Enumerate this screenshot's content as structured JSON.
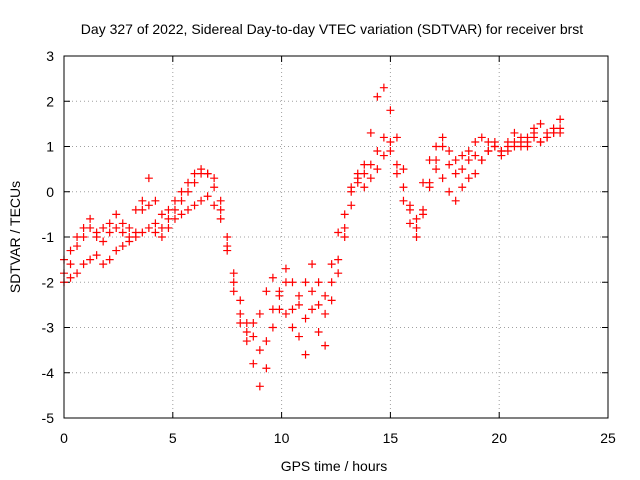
{
  "chart_data": {
    "type": "scatter",
    "title": "Day 327 of 2022, Sidereal Day-to-day VTEC variation (SDTVAR) for receiver brst",
    "xlabel": "GPS time / hours",
    "ylabel": "SDTVAR / TECUs",
    "xlim": [
      0,
      25
    ],
    "ylim": [
      -5,
      3
    ],
    "xticks": [
      0,
      5,
      10,
      15,
      20,
      25
    ],
    "yticks": [
      -5,
      -4,
      -3,
      -2,
      -1,
      0,
      1,
      2,
      3
    ],
    "grid": true,
    "marker": "+",
    "series": [
      {
        "color": "#ff0000",
        "x": [
          0.0,
          0.3,
          0.6,
          0.9,
          1.2,
          1.5,
          1.8,
          2.1,
          2.4,
          2.7,
          3.0,
          3.3,
          3.6,
          3.9,
          4.2,
          4.5,
          4.8,
          5.1,
          5.4,
          5.7,
          6.0,
          6.3,
          6.6,
          6.9,
          7.2,
          7.5,
          7.8,
          8.1,
          8.4,
          8.7,
          9.0,
          9.3,
          9.6,
          9.9,
          10.2,
          10.5,
          10.8,
          11.1,
          11.4,
          11.7,
          12.0,
          12.3,
          12.6,
          12.9,
          13.2,
          13.5,
          13.8,
          14.1,
          14.4,
          14.7,
          15.0,
          15.3,
          15.6,
          15.9,
          16.2,
          16.5,
          16.8,
          17.1,
          17.4,
          17.7,
          18.0,
          18.3,
          18.6,
          18.9,
          19.2,
          19.5,
          19.8,
          20.1,
          20.4,
          20.7,
          21.0,
          21.3,
          21.6,
          21.9,
          22.2,
          22.5,
          22.8
        ],
        "y": [
          -2.0,
          -1.6,
          -1.2,
          -1.0,
          -0.8,
          -1.0,
          -1.1,
          -0.9,
          -0.8,
          -0.9,
          -1.0,
          -0.9,
          -0.4,
          -0.3,
          -0.7,
          -0.8,
          -0.6,
          -0.4,
          -0.2,
          0.0,
          0.2,
          0.4,
          0.4,
          0.3,
          -0.2,
          -1.0,
          -1.8,
          -2.4,
          -2.9,
          -3.2,
          -3.5,
          -3.3,
          -2.6,
          -2.2,
          -2.0,
          -2.6,
          -2.3,
          -2.8,
          -2.2,
          -2.5,
          -2.7,
          -2.4,
          -1.8,
          -1.0,
          -0.3,
          0.2,
          0.4,
          0.6,
          0.9,
          1.2,
          0.9,
          0.4,
          -0.2,
          -0.7,
          -0.6,
          0.2,
          0.7,
          1.0,
          1.2,
          0.9,
          0.7,
          0.8,
          0.9,
          1.1,
          1.2,
          1.1,
          1.0,
          0.9,
          1.0,
          1.1,
          1.0,
          1.2,
          1.3,
          1.1,
          1.2,
          1.3,
          1.3
        ]
      },
      {
        "color": "#ff0000",
        "x": [
          0.0,
          0.3,
          0.6,
          0.9,
          1.2,
          1.5,
          1.8,
          2.1,
          2.4,
          2.7,
          3.0,
          3.3,
          3.6,
          3.9,
          4.2,
          4.5,
          4.8,
          5.1,
          5.4,
          5.7,
          6.0,
          6.3,
          6.6,
          6.9,
          7.2,
          7.5,
          7.8,
          8.1,
          8.4,
          8.7,
          9.0,
          9.3,
          9.6,
          9.9,
          10.2,
          10.5,
          10.8,
          11.1,
          11.4,
          11.7,
          12.0,
          12.3,
          12.6,
          12.9,
          13.2,
          13.5,
          13.8,
          14.1,
          14.4,
          14.7,
          15.0,
          15.3,
          15.6,
          15.9,
          16.2,
          16.5,
          16.8,
          17.1,
          17.4,
          17.7,
          18.0,
          18.3,
          18.6,
          18.9,
          19.2,
          19.5,
          19.8,
          20.1,
          20.4,
          20.7,
          21.0,
          21.3,
          21.6,
          21.9,
          22.2,
          22.5,
          22.8
        ],
        "y": [
          -1.8,
          -1.3,
          -1.0,
          -0.8,
          -0.6,
          -0.9,
          -0.8,
          -0.7,
          -0.5,
          -0.7,
          -0.8,
          -0.4,
          -0.2,
          0.3,
          -0.2,
          -0.5,
          -0.4,
          -0.2,
          0.0,
          0.2,
          0.4,
          0.5,
          0.4,
          0.1,
          -0.4,
          -1.3,
          -2.2,
          -2.9,
          -3.3,
          -3.8,
          -4.3,
          -3.9,
          -3.0,
          -2.6,
          -1.7,
          -2.0,
          -3.2,
          -3.6,
          -2.6,
          -3.1,
          -3.4,
          -2.0,
          -1.5,
          -0.8,
          0.1,
          0.4,
          0.6,
          1.3,
          2.1,
          2.3,
          1.8,
          1.2,
          0.5,
          -0.4,
          -1.0,
          -0.5,
          0.1,
          0.5,
          0.3,
          0.0,
          -0.2,
          0.1,
          0.3,
          0.4,
          0.7,
          0.9,
          1.1,
          0.9,
          1.1,
          1.3,
          1.2,
          1.1,
          1.4,
          1.5,
          1.2,
          1.3,
          1.6
        ]
      },
      {
        "color": "#ff0000",
        "x": [
          0.0,
          0.3,
          0.6,
          0.9,
          1.2,
          1.5,
          1.8,
          2.1,
          2.4,
          2.7,
          3.0,
          3.3,
          3.6,
          3.9,
          4.2,
          4.5,
          4.8,
          5.1,
          5.4,
          5.7,
          6.0,
          6.3,
          6.6,
          6.9,
          7.2,
          7.5,
          7.8,
          8.1,
          8.4,
          8.7,
          9.0,
          9.3,
          9.6,
          9.9,
          10.2,
          10.5,
          10.8,
          11.1,
          11.4,
          11.7,
          12.0,
          12.3,
          12.6,
          12.9,
          13.2,
          13.5,
          13.8,
          14.1,
          14.4,
          14.7,
          15.0,
          15.3,
          15.6,
          15.9,
          16.2,
          16.5,
          16.8,
          17.1,
          17.4,
          17.7,
          18.0,
          18.3,
          18.6,
          18.9,
          19.2,
          19.5,
          19.8,
          20.1,
          20.4,
          20.7,
          21.0,
          21.3,
          21.6,
          21.9,
          22.2,
          22.5,
          22.8
        ],
        "y": [
          -1.5,
          -1.9,
          -1.8,
          -1.6,
          -1.5,
          -1.4,
          -1.6,
          -1.5,
          -1.3,
          -1.2,
          -1.1,
          -1.0,
          -0.9,
          -0.8,
          -0.9,
          -1.0,
          -0.8,
          -0.6,
          -0.5,
          -0.4,
          -0.3,
          -0.2,
          -0.1,
          -0.3,
          -0.6,
          -1.2,
          -2.0,
          -2.7,
          -3.1,
          -2.9,
          -2.7,
          -2.2,
          -1.9,
          -2.3,
          -2.7,
          -3.0,
          -2.5,
          -2.0,
          -1.6,
          -2.0,
          -2.3,
          -1.6,
          -0.9,
          -0.5,
          0.0,
          0.3,
          0.1,
          0.3,
          0.5,
          0.8,
          1.1,
          0.6,
          0.1,
          -0.3,
          -0.8,
          -0.4,
          0.2,
          0.7,
          1.0,
          0.6,
          0.4,
          0.5,
          0.7,
          0.8,
          0.7,
          0.9,
          1.0,
          0.8,
          0.9,
          1.0,
          1.1,
          1.0,
          1.2,
          1.1,
          1.3,
          1.4,
          1.4
        ]
      }
    ]
  }
}
